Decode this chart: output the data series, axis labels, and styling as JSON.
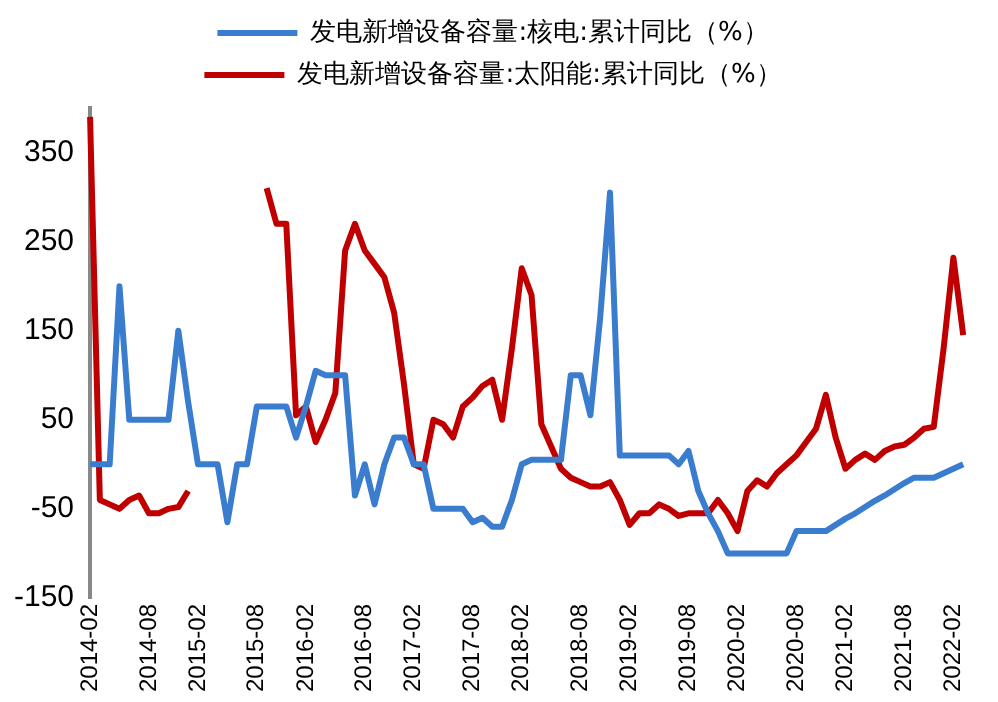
{
  "chart_data": {
    "type": "line",
    "categories": [
      "2014-02",
      null,
      null,
      null,
      null,
      null,
      "2014-08",
      null,
      null,
      null,
      null,
      "2015-02",
      null,
      null,
      null,
      null,
      null,
      "2015-08",
      null,
      null,
      null,
      null,
      "2016-02",
      null,
      null,
      null,
      null,
      null,
      "2016-08",
      null,
      null,
      null,
      null,
      "2017-02",
      null,
      null,
      null,
      null,
      null,
      "2017-08",
      null,
      null,
      null,
      null,
      "2018-02",
      null,
      null,
      null,
      null,
      null,
      "2018-08",
      null,
      null,
      null,
      null,
      "2019-02",
      null,
      null,
      null,
      null,
      null,
      "2019-08",
      null,
      null,
      null,
      null,
      "2020-02",
      null,
      null,
      null,
      null,
      null,
      "2020-08",
      null,
      null,
      null,
      null,
      "2021-02",
      null,
      null,
      null,
      null,
      null,
      "2021-08",
      null,
      null,
      null,
      null,
      "2022-02",
      null
    ],
    "series": [
      {
        "name": "发电新增设备容量:核电:累计同比（%）",
        "color": "#3a7dcf",
        "values": [
          0,
          0,
          0,
          200,
          50,
          50,
          50,
          50,
          50,
          150,
          70,
          0,
          0,
          0,
          -65,
          0,
          0,
          65,
          65,
          65,
          65,
          30,
          65,
          105,
          100,
          100,
          100,
          -35,
          0,
          -45,
          0,
          30,
          30,
          0,
          0,
          -50,
          -50,
          -50,
          -50,
          -65,
          -60,
          -70,
          -70,
          -40,
          0,
          5,
          5,
          5,
          5,
          100,
          100,
          55,
          165,
          305,
          10,
          10,
          10,
          10,
          10,
          10,
          0,
          15,
          -30,
          -55,
          -75,
          -100,
          -100,
          -100,
          -100,
          -100,
          -100,
          -100,
          -75,
          -75,
          -75,
          -75,
          -68,
          -61,
          -55,
          -48,
          -41,
          -35,
          -28,
          -21,
          -15,
          -15,
          -15,
          -10,
          -5,
          0
        ]
      },
      {
        "name": "发电新增设备容量:太阳能:累计同比（%）",
        "color": "#c00000",
        "values": [
          390,
          -40,
          -45,
          -50,
          -40,
          -35,
          -55,
          -55,
          -50,
          -48,
          -30,
          null,
          null,
          null,
          null,
          null,
          null,
          null,
          310,
          270,
          270,
          55,
          65,
          25,
          50,
          80,
          240,
          270,
          240,
          225,
          210,
          170,
          90,
          0,
          -5,
          50,
          45,
          30,
          65,
          75,
          88,
          95,
          50,
          130,
          220,
          190,
          45,
          20,
          -5,
          -15,
          -20,
          -25,
          -25,
          -20,
          -40,
          -68,
          -55,
          -55,
          -45,
          -50,
          -58,
          -55,
          -55,
          -55,
          -40,
          -55,
          -75,
          -30,
          -18,
          -25,
          -10,
          0,
          10,
          25,
          40,
          78,
          30,
          -5,
          5,
          12,
          5,
          15,
          20,
          22,
          30,
          40,
          42,
          130,
          232,
          145
        ]
      }
    ],
    "ylim": [
      -150,
      400
    ],
    "yticks": [
      -150,
      -50,
      50,
      150,
      250,
      350
    ],
    "grid": false,
    "legend": "top",
    "marker": "none",
    "line_style": "solid"
  }
}
